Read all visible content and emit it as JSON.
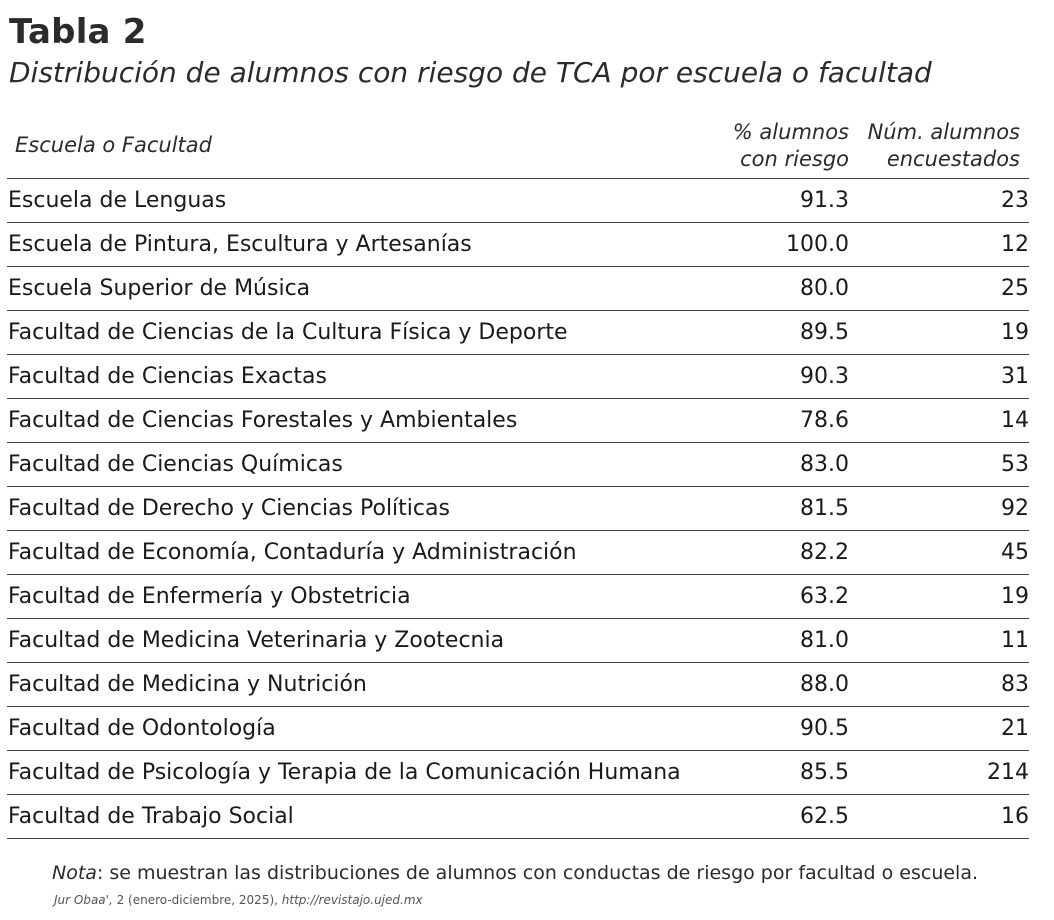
{
  "heading": {
    "title": "Tabla 2",
    "subtitle": "Distribución de alumnos con riesgo de TCA por escuela o facultad"
  },
  "table": {
    "headers": {
      "school": "Escuela o Facultad",
      "percent_line1": "% alumnos",
      "percent_line2": "con riesgo",
      "count_line1": "Núm. alumnos",
      "count_line2": "encuestados"
    },
    "rows": [
      {
        "name": "Escuela de Lenguas",
        "percent": "91.3",
        "count": "23"
      },
      {
        "name": "Escuela de Pintura, Escultura y Artesanías",
        "percent": "100.0",
        "count": "12"
      },
      {
        "name": "Escuela Superior de Música",
        "percent": "80.0",
        "count": "25"
      },
      {
        "name": "Facultad de Ciencias de la Cultura Física y Deporte",
        "percent": "89.5",
        "count": "19"
      },
      {
        "name": "Facultad de Ciencias Exactas",
        "percent": "90.3",
        "count": "31"
      },
      {
        "name": "Facultad de Ciencias Forestales y Ambientales",
        "percent": "78.6",
        "count": "14"
      },
      {
        "name": "Facultad de Ciencias Químicas",
        "percent": "83.0",
        "count": "53"
      },
      {
        "name": "Facultad de Derecho y Ciencias Políticas",
        "percent": "81.5",
        "count": "92"
      },
      {
        "name": "Facultad de Economía, Contaduría y Administración",
        "percent": "82.2",
        "count": "45"
      },
      {
        "name": "Facultad de Enfermería y Obstetricia",
        "percent": "63.2",
        "count": "19"
      },
      {
        "name": "Facultad de Medicina Veterinaria y Zootecnia",
        "percent": "81.0",
        "count": "11"
      },
      {
        "name": "Facultad de Medicina y Nutrición",
        "percent": "88.0",
        "count": "83"
      },
      {
        "name": "Facultad de Odontología",
        "percent": "90.5",
        "count": "21"
      },
      {
        "name": "Facultad de Psicología y Terapia de la Comunicación Humana",
        "percent": "85.5",
        "count": "214"
      },
      {
        "name": "Facultad de Trabajo Social",
        "percent": "62.5",
        "count": "16"
      }
    ]
  },
  "note": {
    "label": "Nota",
    "text": ": se muestran las distribuciones de alumnos con conductas de riesgo por facultad o escuela."
  },
  "footer": {
    "journal": "Jur Obaa',",
    "issue": " 2 (enero-diciembre, 2025), ",
    "url": "http://revistajo.ujed.mx"
  }
}
